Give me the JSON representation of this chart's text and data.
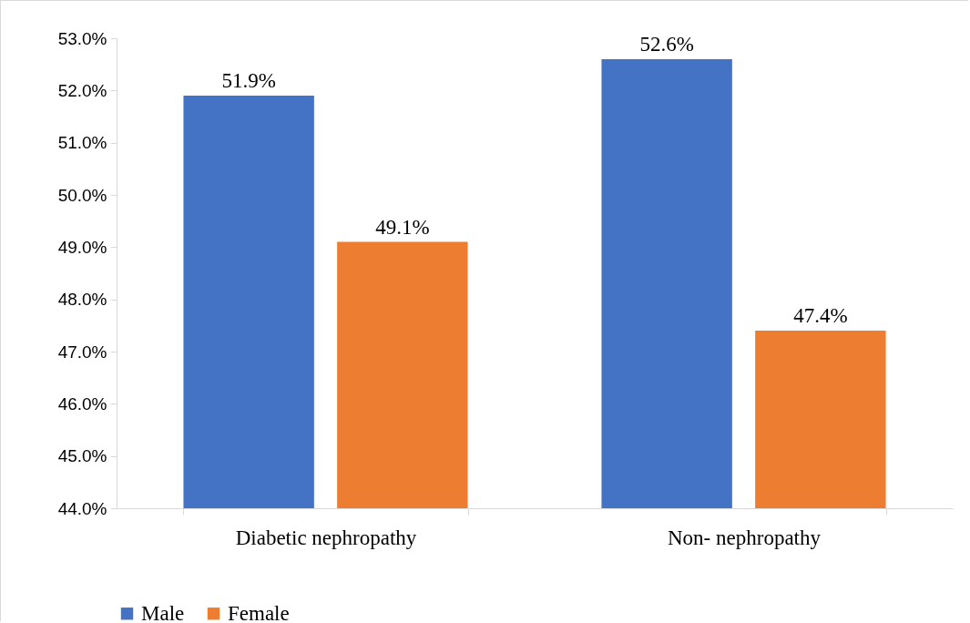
{
  "chart_data": {
    "type": "bar",
    "categories": [
      "Diabetic nephropathy",
      "Non- nephropathy"
    ],
    "series": [
      {
        "name": "Male",
        "color": "#4472c4",
        "values": [
          51.9,
          52.6
        ],
        "value_labels": [
          "51.9%",
          "52.6%"
        ]
      },
      {
        "name": "Female",
        "color": "#ed7d31",
        "values": [
          49.1,
          47.4
        ],
        "value_labels": [
          "49.1%",
          "47.4%"
        ]
      }
    ],
    "ylim": [
      44,
      53
    ],
    "yticks": [
      {
        "value": 44,
        "label": "44.0%"
      },
      {
        "value": 45,
        "label": "45.0%"
      },
      {
        "value": 46,
        "label": "46.0%"
      },
      {
        "value": 47,
        "label": "47.0%"
      },
      {
        "value": 48,
        "label": "48.0%"
      },
      {
        "value": 49,
        "label": "49.0%"
      },
      {
        "value": 50,
        "label": "50.0%"
      },
      {
        "value": 51,
        "label": "51.0%"
      },
      {
        "value": 52,
        "label": "52.0%"
      },
      {
        "value": 53,
        "label": "53.0%"
      }
    ],
    "grid": false,
    "legend": "bottom"
  }
}
